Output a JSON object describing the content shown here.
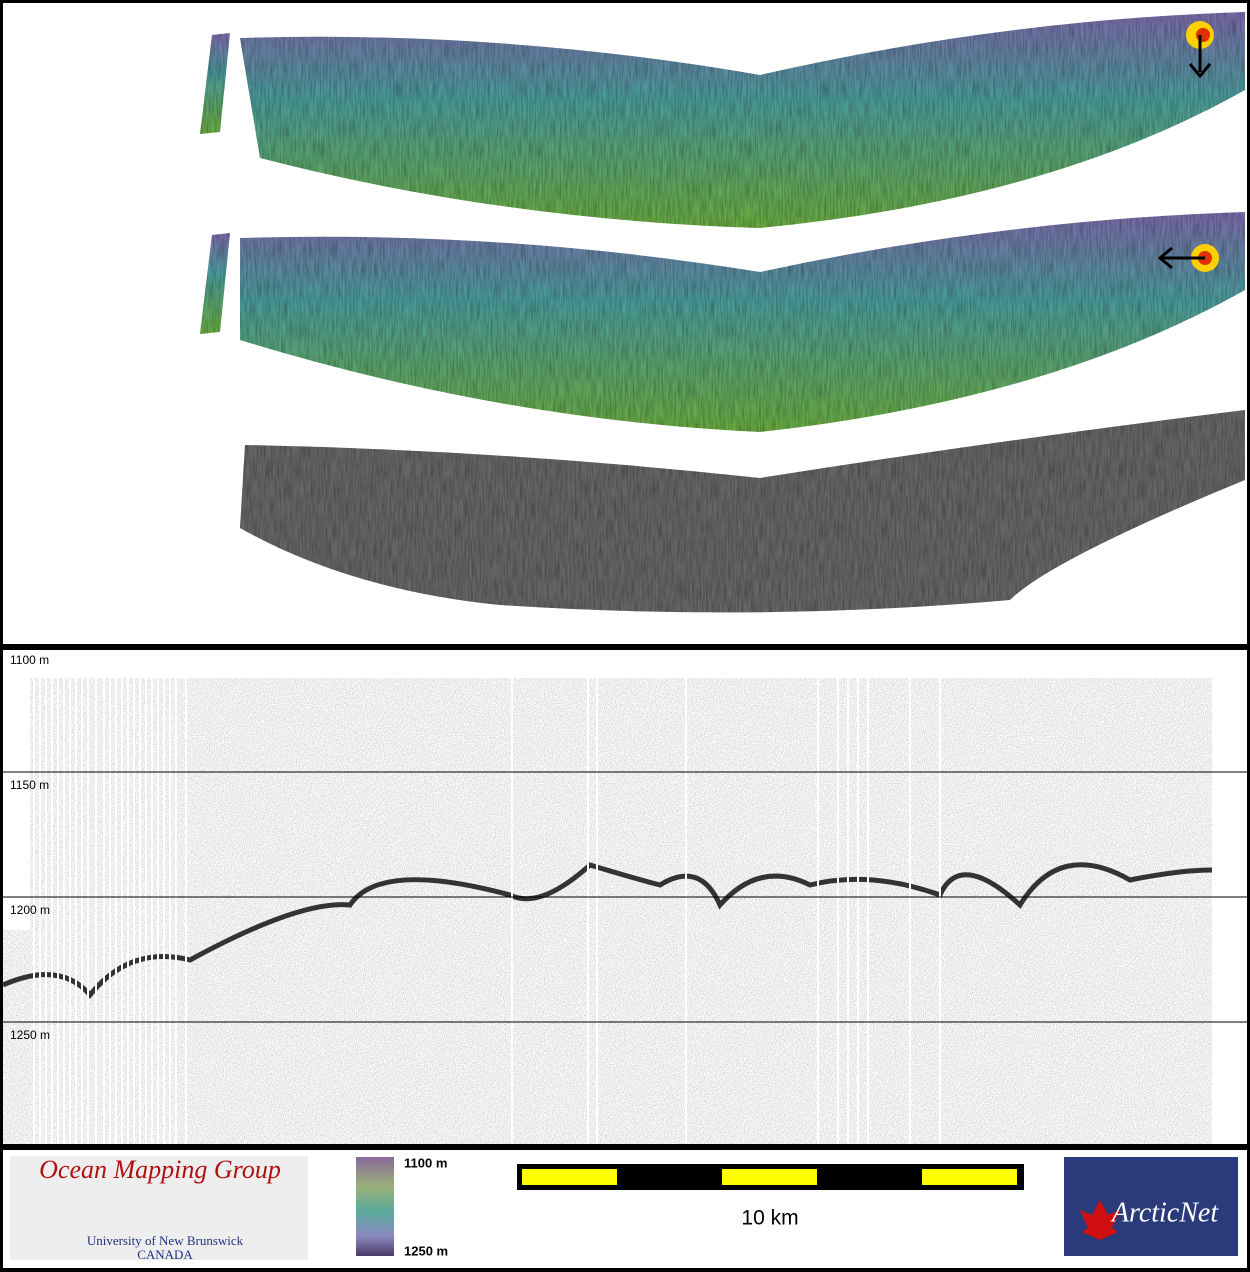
{
  "profile": {
    "depth_range": [
      1100,
      1300
    ],
    "depth_ticks": [
      {
        "value": 1100,
        "label": "1100 m"
      },
      {
        "value": 1150,
        "label": "1150 m"
      },
      {
        "value": 1200,
        "label": "1200 m"
      },
      {
        "value": 1250,
        "label": "1250 m"
      }
    ]
  },
  "footer": {
    "logo_left": {
      "title": "Ocean Mapping Group",
      "subtitle": "University of New Brunswick",
      "country": "CANADA"
    },
    "colorbar": {
      "top_label": "1100 m",
      "bottom_label": "1250 m"
    },
    "scale_bar": {
      "label": "10 km"
    },
    "logo_right": {
      "text": "ArcticNet"
    }
  }
}
